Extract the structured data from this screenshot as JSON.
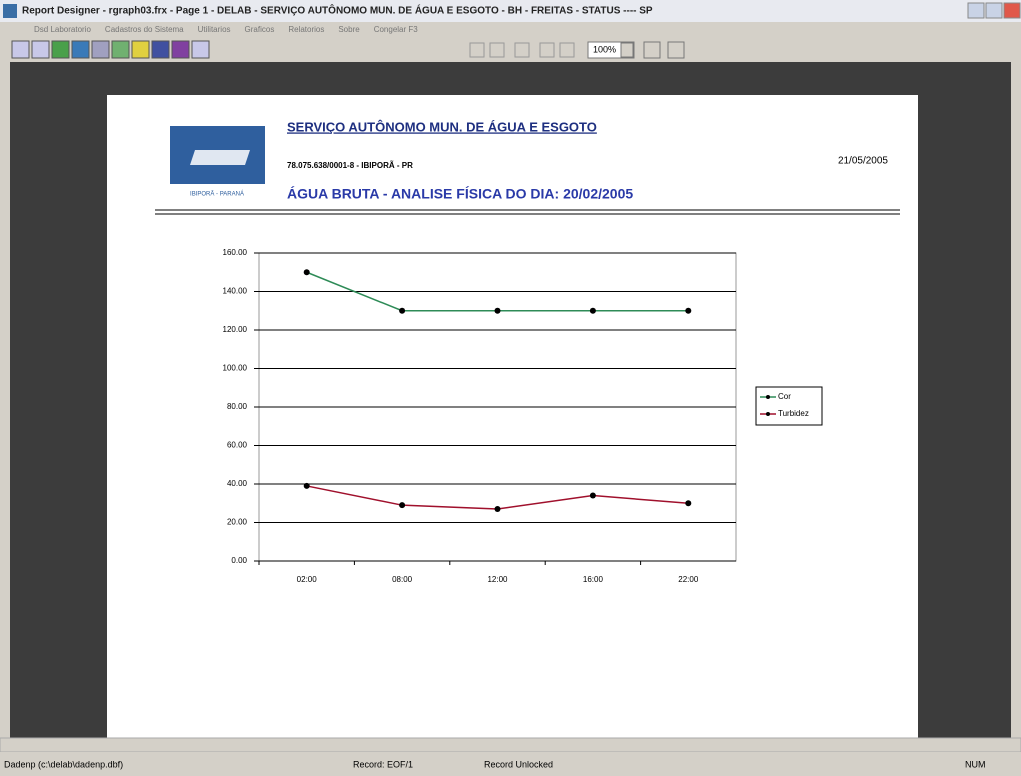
{
  "window": {
    "title": "Report Designer - rgraph03.frx - Page 1 - DELAB - SERVIÇO AUTÔNOMO MUN. DE ÁGUA E ESGOTO - BH - FREITAS - STATUS ---- SP",
    "menu": [
      "Dsd Laboratorio",
      "Cadastros do Sistema",
      "Utilitarios",
      "Graficos",
      "Relatorios",
      "Sobre",
      "Congelar F3"
    ],
    "zoom": "100%"
  },
  "report": {
    "org": "SERVIÇO AUTÔNOMO MUN. DE ÁGUA E ESGOTO",
    "cnpj": "78.075.638/0001-8  - IBIPORÃ - PR",
    "date": "21/05/2005",
    "heading": "ÁGUA BRUTA - ANALISE FÍSICA DO DIA: 20/02/2005",
    "logo_text": "IBIPORÃ - PARANÁ"
  },
  "chart_data": {
    "type": "line",
    "categories": [
      "02:00",
      "08:00",
      "12:00",
      "16:00",
      "22:00"
    ],
    "series": [
      {
        "name": "Cor",
        "color": "#2e8b57",
        "values": [
          150,
          130,
          130,
          130,
          130
        ]
      },
      {
        "name": "Turbidez",
        "color": "#a0102c",
        "values": [
          39,
          29,
          27,
          34,
          30
        ]
      }
    ],
    "ylim": [
      0,
      160
    ],
    "yticks": [
      {
        "value": 0,
        "label": "0.00"
      },
      {
        "value": 20,
        "label": "20.00"
      },
      {
        "value": 40,
        "label": "40.00"
      },
      {
        "value": 60,
        "label": "60.00"
      },
      {
        "value": 80,
        "label": "80.00"
      },
      {
        "value": 100,
        "label": "100.00"
      },
      {
        "value": 120,
        "label": "120.00"
      },
      {
        "value": 140,
        "label": "140.00"
      },
      {
        "value": 160,
        "label": "160.00"
      }
    ],
    "grid": true,
    "legend": "right"
  },
  "status": {
    "table": "Dadenp (c:\\delab\\dadenp.dbf)",
    "record": "Record: EOF/1",
    "lock": "Record Unlocked",
    "num": "NUM"
  }
}
